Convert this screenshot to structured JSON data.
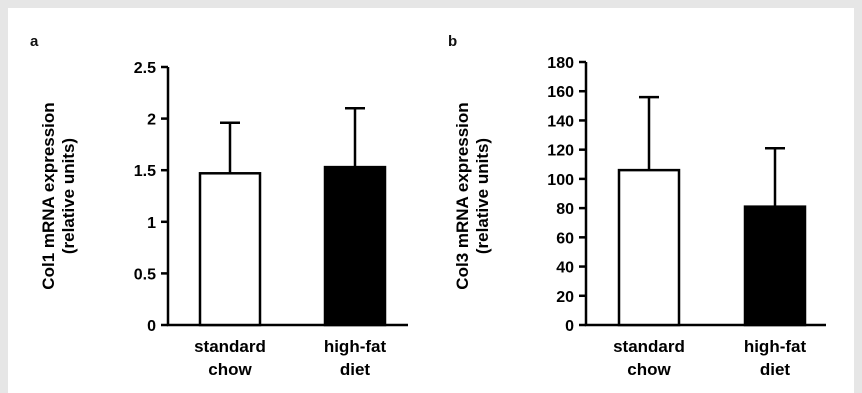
{
  "chart_data": [
    {
      "type": "bar",
      "panel_label": "a",
      "ylabel": [
        "Col1 mRNA expression",
        "(relative units)"
      ],
      "ylim": [
        0,
        2.5
      ],
      "yticks": [
        0,
        0.5,
        1,
        1.5,
        2,
        2.5
      ],
      "ytick_labels": [
        "0",
        "0.5",
        "1",
        "1.5",
        "2",
        "2.5"
      ],
      "categories": [
        {
          "lines": [
            "standard",
            "chow"
          ]
        },
        {
          "lines": [
            "high-fat",
            "diet"
          ]
        }
      ],
      "values": [
        1.47,
        1.53
      ],
      "errors": [
        0.49,
        0.57
      ],
      "bar_colors": [
        "#ffffff",
        "#000000"
      ]
    },
    {
      "type": "bar",
      "panel_label": "b",
      "ylabel": [
        "Col3 mRNA expression",
        "(relative units)"
      ],
      "ylim": [
        0,
        180
      ],
      "yticks": [
        0,
        20,
        40,
        60,
        80,
        100,
        120,
        140,
        160,
        180
      ],
      "ytick_labels": [
        "0",
        "20",
        "40",
        "60",
        "80",
        "100",
        "120",
        "140",
        "160",
        "180"
      ],
      "categories": [
        {
          "lines": [
            "standard",
            "chow"
          ]
        },
        {
          "lines": [
            "high-fat",
            "diet"
          ]
        }
      ],
      "values": [
        106,
        81
      ],
      "errors": [
        50,
        40
      ],
      "bar_colors": [
        "#ffffff",
        "#000000"
      ]
    }
  ]
}
